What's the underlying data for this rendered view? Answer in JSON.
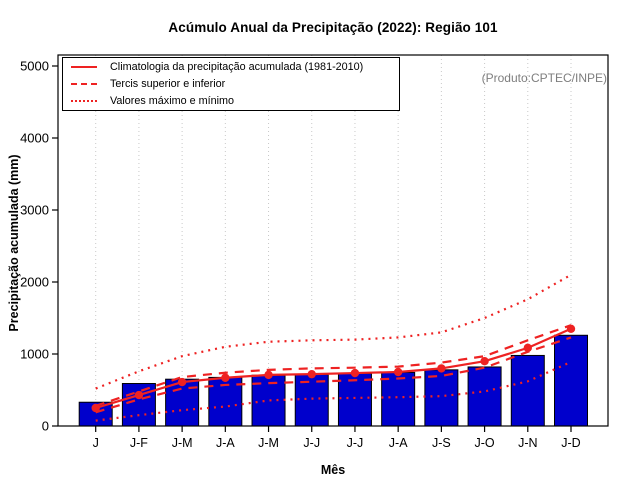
{
  "title": "Acúmulo Anual da Precipitação (2022): Região 101",
  "legend": {
    "entries": [
      {
        "label": "Climatologia da precipitação acumulada (1981-2010)",
        "style": "solid"
      },
      {
        "label": "Tercis superior e inferior",
        "style": "dashed"
      },
      {
        "label": "Valores máximo e mínimo",
        "style": "dotted"
      }
    ]
  },
  "chart_data": {
    "type": "bar",
    "title": "Acúmulo Anual da Precipitação (2022): Região 101",
    "xlabel": "Mês",
    "ylabel": "Precipitação acumulada (mm)",
    "ylim": [
      0,
      5000
    ],
    "yticks": [
      0,
      1000,
      2000,
      3000,
      4000,
      5000
    ],
    "grid": "vertical dotted gray gridline at each month",
    "legend_position": "top-left",
    "annotation": "(Produto:CPTEC/INPE)",
    "categories": [
      "J",
      "J-F",
      "J-M",
      "J-A",
      "J-M",
      "J-J",
      "J-J",
      "J-A",
      "J-S",
      "J-O",
      "J-N",
      "J-D"
    ],
    "bars": {
      "description": "Precipitação acumulada observada em 2022 (mm)",
      "values": [
        330,
        590,
        650,
        675,
        705,
        715,
        730,
        745,
        780,
        820,
        980,
        1260
      ],
      "color": "#0000CC",
      "border": "#000000"
    },
    "line_color": "#EE2222",
    "series": [
      {
        "name": "Climatologia da precipitação acumulada (1981-2010)",
        "style": "solid",
        "marker": "circle",
        "values": [
          250,
          430,
          610,
          670,
          710,
          720,
          735,
          750,
          800,
          900,
          1085,
          1350
        ]
      },
      {
        "name": "Tercil superior",
        "style": "dashed",
        "values": [
          280,
          480,
          680,
          740,
          780,
          800,
          810,
          825,
          880,
          970,
          1190,
          1400
        ]
      },
      {
        "name": "Tercil inferior",
        "style": "dashed",
        "values": [
          190,
          370,
          520,
          570,
          595,
          615,
          635,
          660,
          695,
          810,
          1030,
          1230
        ]
      },
      {
        "name": "Valor máximo",
        "style": "dotted",
        "values": [
          520,
          760,
          970,
          1100,
          1170,
          1190,
          1200,
          1230,
          1300,
          1500,
          1760,
          2100
        ]
      },
      {
        "name": "Valor mínimo",
        "style": "dotted",
        "values": [
          75,
          150,
          220,
          270,
          355,
          380,
          390,
          400,
          415,
          480,
          620,
          890
        ]
      }
    ]
  }
}
